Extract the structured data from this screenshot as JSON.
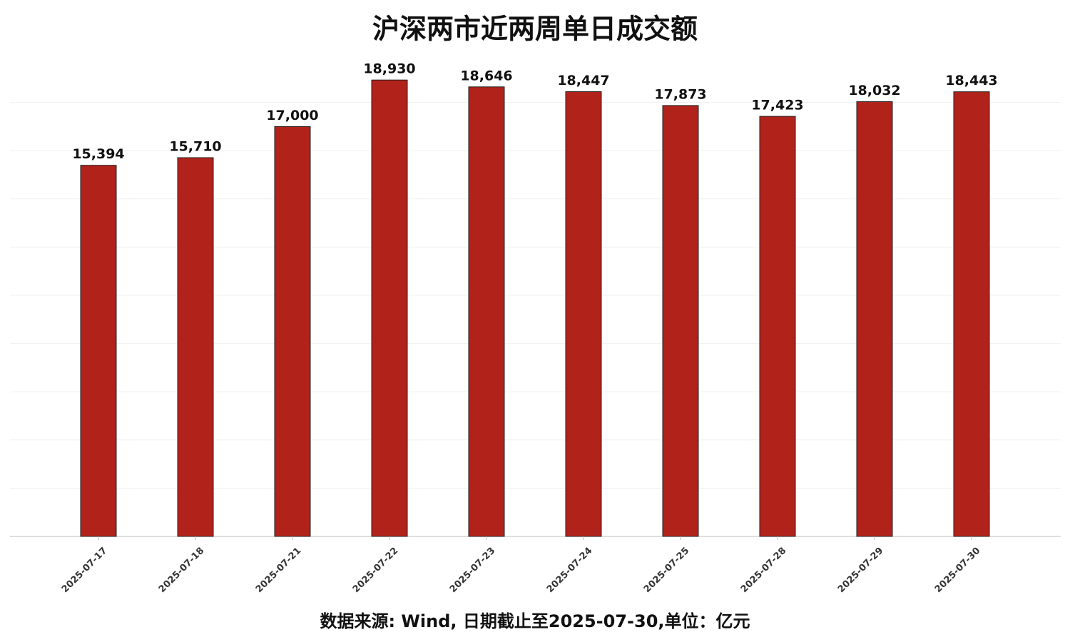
{
  "chart_data": {
    "type": "bar",
    "title": "沪深两市近两周单日成交额",
    "note": "数据来源: Wind, 日期截止至2025-07-30,单位：亿元",
    "categories": [
      "2025-07-17",
      "2025-07-18",
      "2025-07-21",
      "2025-07-22",
      "2025-07-23",
      "2025-07-24",
      "2025-07-25",
      "2025-07-28",
      "2025-07-29",
      "2025-07-30"
    ],
    "values": [
      15394,
      15710,
      17000,
      18930,
      18646,
      18447,
      17873,
      17423,
      18032,
      18443
    ],
    "value_labels": [
      "15,394",
      "15,710",
      "17,000",
      "18,930",
      "18,646",
      "18,447",
      "17,873",
      "17,423",
      "18,032",
      "18,443"
    ],
    "color": "#b0221a",
    "ylim": [
      0,
      20000
    ],
    "yticks": [
      2000,
      4000,
      6000,
      8000,
      10000,
      12000,
      14000,
      16000,
      18000
    ],
    "grid": true
  }
}
